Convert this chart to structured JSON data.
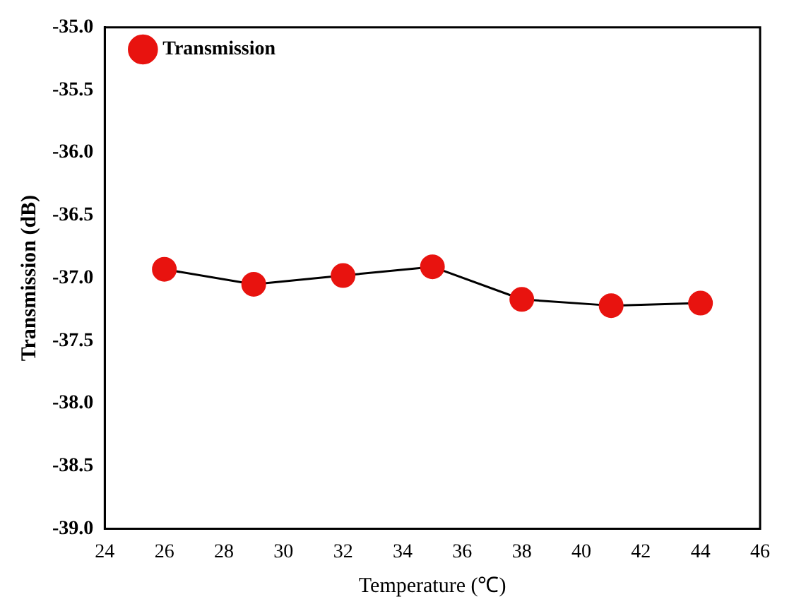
{
  "chart_data": {
    "type": "line",
    "xlabel": "Temperature (℃)",
    "ylabel": "Transmission (dB)",
    "x": [
      26,
      29,
      32,
      35,
      38,
      41,
      44
    ],
    "series": [
      {
        "name": "Transmission",
        "color": "#e8130f",
        "values": [
          -36.93,
          -37.05,
          -36.98,
          -36.91,
          -37.17,
          -37.22,
          -37.2
        ]
      }
    ],
    "xlim": [
      24,
      46
    ],
    "xticks": [
      24,
      26,
      28,
      30,
      32,
      34,
      36,
      38,
      40,
      42,
      44,
      46
    ],
    "ylim": [
      -39,
      -35
    ],
    "yticks": [
      {
        "value": -39,
        "label": "-39.0"
      },
      {
        "value": -38.5,
        "label": "-38.5"
      },
      {
        "value": -38,
        "label": "-38.0"
      },
      {
        "value": -37.5,
        "label": "-37.5"
      },
      {
        "value": -37,
        "label": "-37.0"
      },
      {
        "value": -36.5,
        "label": "-36.5"
      },
      {
        "value": -36,
        "label": "-36.0"
      },
      {
        "value": -35.5,
        "label": "-35.5"
      },
      {
        "value": -35,
        "label": "-35.0"
      }
    ],
    "grid": false,
    "legend": "top left",
    "marker": "circle",
    "line_style": "solid"
  }
}
